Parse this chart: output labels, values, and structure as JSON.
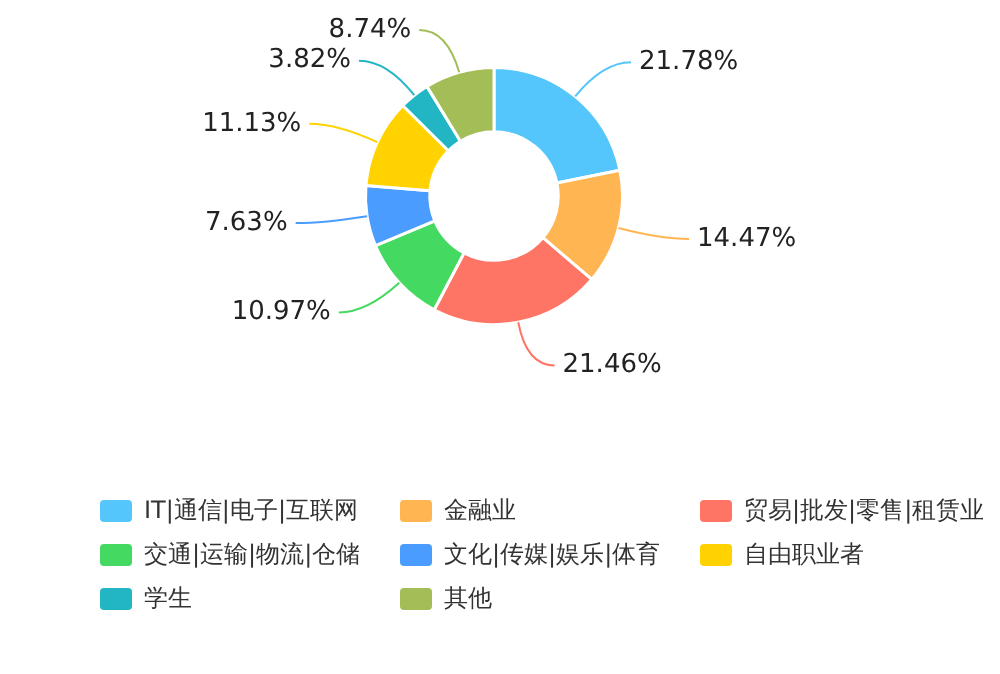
{
  "chart_data": {
    "type": "donut",
    "categories": [
      "IT|通信|电子|互联网",
      "金融业",
      "贸易|批发|零售|租赁业",
      "交通|运输|物流|仓储",
      "文化|传媒|娱乐|体育",
      "自由职业者",
      "学生",
      "其他"
    ],
    "values": [
      21.78,
      14.47,
      21.46,
      10.97,
      7.63,
      11.13,
      3.82,
      8.74
    ],
    "value_labels": [
      "21.78%",
      "14.47%",
      "21.46%",
      "10.97%",
      "7.63%",
      "11.13%",
      "3.82%",
      "8.74%"
    ],
    "colors": [
      "#55c6fb",
      "#ffb551",
      "#ff7565",
      "#44d960",
      "#4a9cff",
      "#ffd200",
      "#22b6c4",
      "#a3bd57"
    ],
    "legend": "bottom"
  }
}
